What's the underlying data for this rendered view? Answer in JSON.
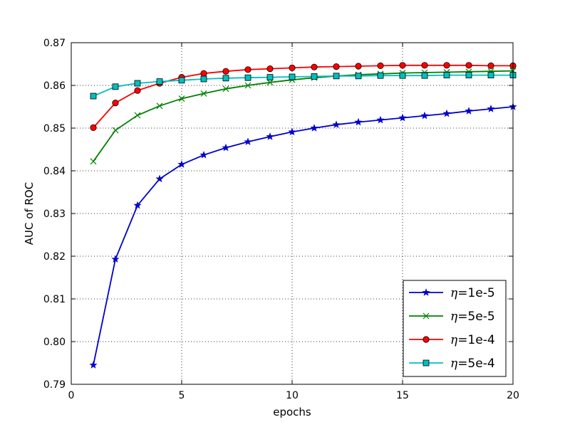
{
  "chart_data": {
    "type": "line",
    "title": "",
    "xlabel": "epochs",
    "ylabel": "AUC of ROC",
    "xlim": [
      0,
      20
    ],
    "ylim": [
      0.79,
      0.87
    ],
    "xticks": [
      "0",
      "5",
      "10",
      "15",
      "20"
    ],
    "yticks": [
      "0.79",
      "0.80",
      "0.81",
      "0.82",
      "0.83",
      "0.84",
      "0.85",
      "0.86",
      "0.87"
    ],
    "grid": true,
    "legend_position": "lower-right",
    "x": [
      1,
      2,
      3,
      4,
      5,
      6,
      7,
      8,
      9,
      10,
      11,
      12,
      13,
      14,
      15,
      16,
      17,
      18,
      19,
      20
    ],
    "series": [
      {
        "name": "η=1e-5",
        "legend_symbol": "η",
        "legend_value": "=1e-5",
        "color": "#0000cc",
        "marker": "star",
        "values": [
          0.7945,
          0.8193,
          0.8319,
          0.8381,
          0.8415,
          0.8437,
          0.8454,
          0.8468,
          0.848,
          0.8491,
          0.85,
          0.8508,
          0.8514,
          0.8519,
          0.8524,
          0.8529,
          0.8534,
          0.854,
          0.8545,
          0.855
        ]
      },
      {
        "name": "η=5e-5",
        "legend_symbol": "η",
        "legend_value": "=5e-5",
        "color": "#008000",
        "marker": "x",
        "values": [
          0.8422,
          0.8495,
          0.853,
          0.8552,
          0.8569,
          0.8581,
          0.8592,
          0.86,
          0.8607,
          0.8613,
          0.8618,
          0.8622,
          0.8625,
          0.8627,
          0.8629,
          0.863,
          0.8631,
          0.8632,
          0.8633,
          0.8634
        ]
      },
      {
        "name": "η=1e-4",
        "legend_symbol": "η",
        "legend_value": "=1e-4",
        "color": "#ff0000",
        "marker": "circle",
        "values": [
          0.8501,
          0.8559,
          0.8588,
          0.8605,
          0.8619,
          0.8628,
          0.8633,
          0.8637,
          0.8639,
          0.8641,
          0.8643,
          0.8644,
          0.8645,
          0.8646,
          0.8647,
          0.8647,
          0.8647,
          0.8647,
          0.8646,
          0.8646
        ]
      },
      {
        "name": "η=5e-4",
        "legend_symbol": "η",
        "legend_value": "=5e-4",
        "color": "#00bfbf",
        "marker": "square",
        "values": [
          0.8575,
          0.8597,
          0.8605,
          0.8609,
          0.8612,
          0.8615,
          0.8617,
          0.8618,
          0.8619,
          0.862,
          0.8621,
          0.8622,
          0.8622,
          0.8623,
          0.8623,
          0.8623,
          0.8624,
          0.8624,
          0.8624,
          0.8624
        ]
      }
    ]
  }
}
